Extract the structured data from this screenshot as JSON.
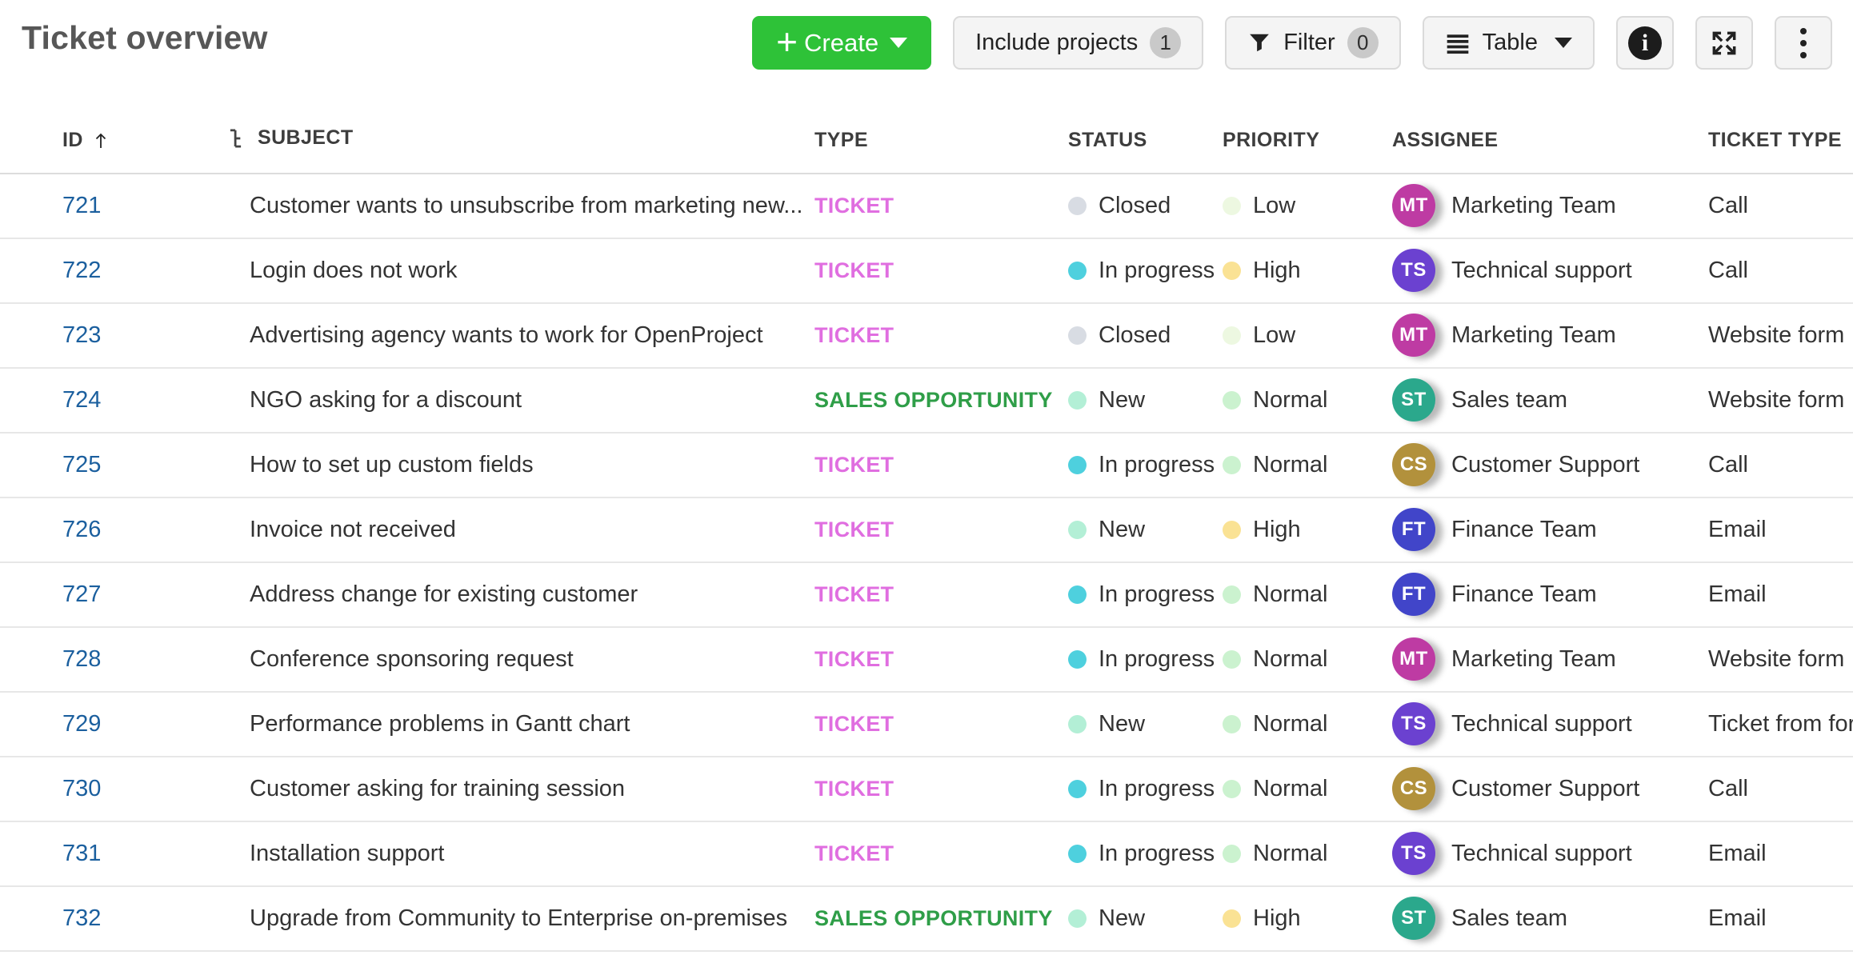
{
  "page_title": "Ticket overview",
  "toolbar": {
    "create": {
      "label": "Create"
    },
    "include_projects": {
      "label": "Include projects",
      "count": "1"
    },
    "filter": {
      "label": "Filter",
      "count": "0"
    },
    "view_mode": {
      "label": "Table"
    }
  },
  "table": {
    "columns": [
      {
        "key": "id",
        "label": "ID",
        "sort": "ascending"
      },
      {
        "key": "subject",
        "label": "SUBJECT",
        "icon": "hierarchy"
      },
      {
        "key": "type",
        "label": "TYPE"
      },
      {
        "key": "status",
        "label": "STATUS"
      },
      {
        "key": "priority",
        "label": "PRIORITY"
      },
      {
        "key": "assignee",
        "label": "ASSIGNEE"
      },
      {
        "key": "ticket_type",
        "label": "TICKET TYPE"
      }
    ],
    "rows": [
      {
        "id": "721",
        "subject": "Customer wants to unsubscribe from marketing new...",
        "type": "TICKET",
        "status": "Closed",
        "priority": "Low",
        "assignee": {
          "initials": "MT",
          "name": "Marketing Team"
        },
        "ticket_type": "Call"
      },
      {
        "id": "722",
        "subject": "Login does not work",
        "type": "TICKET",
        "status": "In progress",
        "priority": "High",
        "assignee": {
          "initials": "TS",
          "name": "Technical support"
        },
        "ticket_type": "Call"
      },
      {
        "id": "723",
        "subject": "Advertising agency wants to work for OpenProject",
        "type": "TICKET",
        "status": "Closed",
        "priority": "Low",
        "assignee": {
          "initials": "MT",
          "name": "Marketing Team"
        },
        "ticket_type": "Website form"
      },
      {
        "id": "724",
        "subject": "NGO asking for a discount",
        "type": "SALES OPPORTUNITY",
        "status": "New",
        "priority": "Normal",
        "assignee": {
          "initials": "ST",
          "name": "Sales team"
        },
        "ticket_type": "Website form"
      },
      {
        "id": "725",
        "subject": "How to set up custom fields",
        "type": "TICKET",
        "status": "In progress",
        "priority": "Normal",
        "assignee": {
          "initials": "CS",
          "name": "Customer Support"
        },
        "ticket_type": "Call"
      },
      {
        "id": "726",
        "subject": "Invoice not received",
        "type": "TICKET",
        "status": "New",
        "priority": "High",
        "assignee": {
          "initials": "FT",
          "name": "Finance Team"
        },
        "ticket_type": "Email"
      },
      {
        "id": "727",
        "subject": "Address change for existing customer",
        "type": "TICKET",
        "status": "In progress",
        "priority": "Normal",
        "assignee": {
          "initials": "FT",
          "name": "Finance Team"
        },
        "ticket_type": "Email"
      },
      {
        "id": "728",
        "subject": "Conference sponsoring request",
        "type": "TICKET",
        "status": "In progress",
        "priority": "Normal",
        "assignee": {
          "initials": "MT",
          "name": "Marketing Team"
        },
        "ticket_type": "Website form"
      },
      {
        "id": "729",
        "subject": "Performance problems in Gantt chart",
        "type": "TICKET",
        "status": "New",
        "priority": "Normal",
        "assignee": {
          "initials": "TS",
          "name": "Technical support"
        },
        "ticket_type": "Ticket from for"
      },
      {
        "id": "730",
        "subject": "Customer asking for training session",
        "type": "TICKET",
        "status": "In progress",
        "priority": "Normal",
        "assignee": {
          "initials": "CS",
          "name": "Customer Support"
        },
        "ticket_type": "Call"
      },
      {
        "id": "731",
        "subject": "Installation support",
        "type": "TICKET",
        "status": "In progress",
        "priority": "Normal",
        "assignee": {
          "initials": "TS",
          "name": "Technical support"
        },
        "ticket_type": "Email"
      },
      {
        "id": "732",
        "subject": "Upgrade from Community to Enterprise on-premises",
        "type": "SALES OPPORTUNITY",
        "status": "New",
        "priority": "High",
        "assignee": {
          "initials": "ST",
          "name": "Sales team"
        },
        "ticket_type": "Email"
      }
    ]
  },
  "colors": {
    "create_button": "#2EC238",
    "id_link": "#1B5F9E",
    "type": {
      "TICKET": "#E06EE0",
      "SALES OPPORTUNITY": "#2F9E48"
    },
    "status": {
      "New": "#B3EFD6",
      "In progress": "#4ED0DE",
      "Closed": "#D8DCE3"
    },
    "priority": {
      "Low": "#EDF8E1",
      "Normal": "#CBF2CF",
      "High": "#FAE294"
    },
    "avatar": {
      "MT": "#BE3BA3",
      "TS": "#6B41D0",
      "ST": "#2BA88C",
      "CS": "#B2913C",
      "FT": "#4145C9"
    }
  }
}
